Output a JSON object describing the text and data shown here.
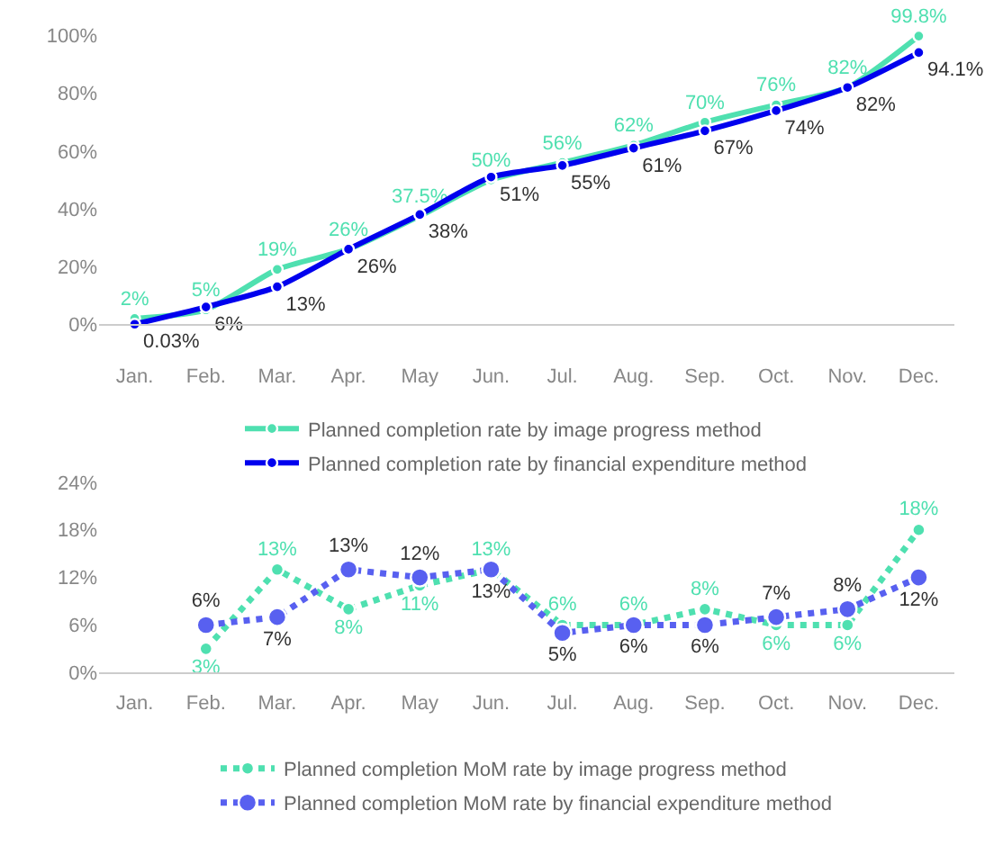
{
  "chart_data": [
    {
      "type": "line",
      "categories": [
        "Jan.",
        "Feb.",
        "Mar.",
        "Apr.",
        "May",
        "Jun.",
        "Jul.",
        "Aug.",
        "Sep.",
        "Oct.",
        "Nov.",
        "Dec."
      ],
      "series": [
        {
          "name": "Planned completion rate by image progress method",
          "color": "#4fe0b0",
          "values": [
            2,
            5,
            19,
            26,
            37.5,
            50,
            56,
            62,
            70,
            76,
            82,
            99.8
          ],
          "value_labels": [
            "2%",
            "5%",
            "19%",
            "26%",
            "37.5%",
            "50%",
            "56%",
            "62%",
            "70%",
            "76%",
            "82%",
            "99.8%"
          ]
        },
        {
          "name": "Planned completion rate by financial expenditure method",
          "color": "#0000ee",
          "values": [
            0.03,
            6,
            13,
            26,
            38,
            51,
            55,
            61,
            67,
            74,
            82,
            94.1
          ],
          "value_labels": [
            "0.03%",
            "6%",
            "13%",
            "26%",
            "38%",
            "51%",
            "55%",
            "61%",
            "67%",
            "74%",
            "82%",
            "94.1%"
          ]
        }
      ],
      "ylim": [
        0,
        100
      ],
      "yticks": [
        {
          "value": 0,
          "label": "0%"
        },
        {
          "value": 20,
          "label": "20%"
        },
        {
          "value": 40,
          "label": "40%"
        },
        {
          "value": 60,
          "label": "60%"
        },
        {
          "value": 80,
          "label": "80%"
        },
        {
          "value": 100,
          "label": "100%"
        }
      ],
      "legend": "bottom",
      "grid": false,
      "marker": "circle",
      "line_style": "solid"
    },
    {
      "type": "line",
      "categories": [
        "Jan.",
        "Feb.",
        "Mar.",
        "Apr.",
        "May",
        "Jun.",
        "Jul.",
        "Aug.",
        "Sep.",
        "Oct.",
        "Nov.",
        "Dec."
      ],
      "series": [
        {
          "name": "Planned completion MoM rate by image progress method",
          "color": "#4fe0b0",
          "values": [
            null,
            3,
            13,
            8,
            11,
            13,
            6,
            6,
            8,
            6,
            6,
            18
          ],
          "value_labels": [
            null,
            "3%",
            "13%",
            "8%",
            "11%",
            "13%",
            "6%",
            "6%",
            "8%",
            "6%",
            "6%",
            "18%"
          ]
        },
        {
          "name": "Planned completion MoM rate by financial expenditure method",
          "color": "#5860f0",
          "values": [
            null,
            6,
            7,
            13,
            12,
            13,
            5,
            6,
            6,
            7,
            8,
            12
          ],
          "value_labels": [
            null,
            "6%",
            "7%",
            "13%",
            "12%",
            "13%",
            "5%",
            "6%",
            "6%",
            "7%",
            "8%",
            "12%"
          ]
        }
      ],
      "ylim": [
        0,
        24
      ],
      "yticks": [
        {
          "value": 0,
          "label": "0%"
        },
        {
          "value": 6,
          "label": "6%"
        },
        {
          "value": 12,
          "label": "12%"
        },
        {
          "value": 18,
          "label": "18%"
        },
        {
          "value": 24,
          "label": "24%"
        }
      ],
      "legend": "bottom",
      "grid": false,
      "marker": "circle",
      "line_style": "dotted"
    }
  ]
}
